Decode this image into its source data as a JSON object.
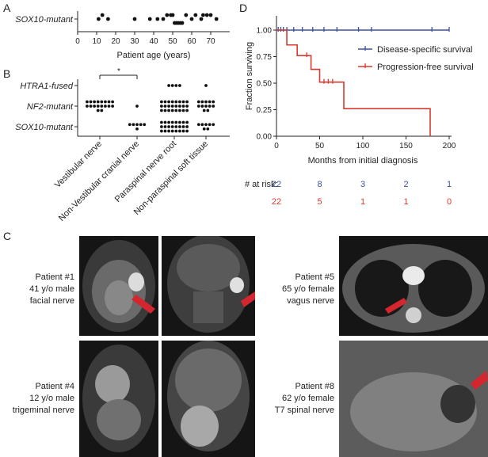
{
  "panels": {
    "A": "A",
    "B": "B",
    "C": "C",
    "D": "D"
  },
  "chart_data": [
    {
      "type": "scatter",
      "panel": "A",
      "ylabel": "SOX10-mutant",
      "xlabel": "Patient age (years)",
      "xlim": [
        0,
        80
      ],
      "xticks": [
        0,
        10,
        20,
        30,
        40,
        50,
        60,
        70
      ],
      "ages": [
        11,
        13,
        16,
        30,
        38,
        42,
        45,
        47,
        49,
        50,
        51,
        52,
        53,
        54,
        55,
        57,
        60,
        62,
        65,
        66,
        68,
        70,
        73
      ]
    },
    {
      "type": "scatter",
      "panel": "B",
      "categories": [
        "Vestibular nerve",
        "Non-Vestibular cranial nerve",
        "Paraspinal nerve root",
        "Non-paraspinal soft tissue"
      ],
      "groups": [
        "HTRA1-fused",
        "NF2-mutant",
        "SOX10-mutant"
      ],
      "counts": {
        "HTRA1-fused": [
          0,
          0,
          4,
          1
        ],
        "NF2-mutant": [
          18,
          1,
          24,
          12
        ],
        "SOX10-mutant": [
          0,
          6,
          24,
          7
        ]
      },
      "annotation": "*"
    },
    {
      "type": "line",
      "panel": "D",
      "ylabel": "Fraction surviving",
      "xlabel": "Months from initial diagnosis",
      "xlim": [
        0,
        200
      ],
      "ylim": [
        0,
        1.0
      ],
      "xticks": [
        0,
        50,
        100,
        150,
        200
      ],
      "yticks": [
        0.0,
        0.25,
        0.5,
        0.75,
        1.0
      ],
      "ytick_labels": [
        "0.00",
        "0.25",
        "0.50",
        "0.75",
        "1.00"
      ],
      "series": [
        {
          "name": "Disease-specific survival",
          "color": "#3b4fa0",
          "steps": [
            [
              0,
              1.0
            ],
            [
              200,
              1.0
            ]
          ],
          "censors": [
            2,
            5,
            8,
            12,
            20,
            30,
            42,
            55,
            70,
            95,
            110,
            180,
            200
          ]
        },
        {
          "name": "Progression-free survival",
          "color": "#d63a30",
          "steps": [
            [
              0,
              1.0
            ],
            [
              12,
              0.86
            ],
            [
              24,
              0.76
            ],
            [
              40,
              0.63
            ],
            [
              50,
              0.51
            ],
            [
              78,
              0.26
            ],
            [
              178,
              0.0
            ]
          ],
          "censors": [
            35,
            55,
            60,
            65
          ]
        }
      ],
      "at_risk_label": "# at risk:",
      "at_risk": {
        "Disease-specific survival": [
          "22",
          "8",
          "3",
          "2",
          "1"
        ],
        "Progression-free survival": [
          "22",
          "5",
          "1",
          "1",
          "0"
        ]
      }
    }
  ],
  "panelC": {
    "cases": [
      {
        "lines": [
          "Patient #1",
          "41 y/o male",
          "facial nerve"
        ]
      },
      {
        "lines": [
          "Patient #4",
          "12 y/o male",
          "trigeminal nerve"
        ]
      },
      {
        "lines": [
          "Patient #5",
          "65 y/o female",
          "vagus nerve"
        ]
      },
      {
        "lines": [
          "Patient #8",
          "62 y/o female",
          "T7 spinal nerve"
        ]
      }
    ]
  },
  "colors": {
    "arrow": "#d3262e",
    "dot": "#111111"
  }
}
